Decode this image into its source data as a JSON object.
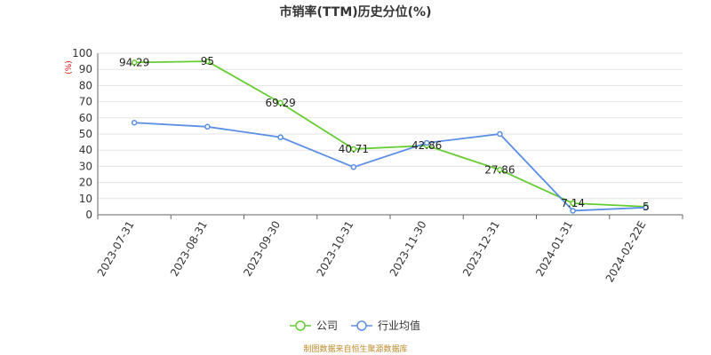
{
  "chart_data": {
    "type": "line",
    "title": "市销率(TTM)历史分位(%)",
    "ylabel": "(%)",
    "xlabel": "",
    "categories": [
      "2023-07-31",
      "2023-08-31",
      "2023-09-30",
      "2023-10-31",
      "2023-11-30",
      "2023-12-31",
      "2024-01-31",
      "2024-02-22E"
    ],
    "ylim": [
      0,
      100
    ],
    "yticks": [
      0,
      10,
      20,
      30,
      40,
      50,
      60,
      70,
      80,
      90,
      100
    ],
    "grid": true,
    "legend_position": "bottom",
    "series": [
      {
        "name": "公司",
        "color": "#66cc33",
        "values": [
          94.29,
          95,
          69.29,
          40.71,
          42.86,
          27.86,
          7.14,
          5
        ],
        "labels": [
          "94.29",
          "95",
          "69.29",
          "40.71",
          "42.86",
          "27.86",
          "7.14",
          "5"
        ]
      },
      {
        "name": "行业均值",
        "color": "#5b8ee6",
        "values": [
          57,
          54.5,
          48,
          29.5,
          44.5,
          50,
          2.5,
          4.5
        ]
      }
    ]
  },
  "source": "制图数据来自恒生聚源数据库"
}
